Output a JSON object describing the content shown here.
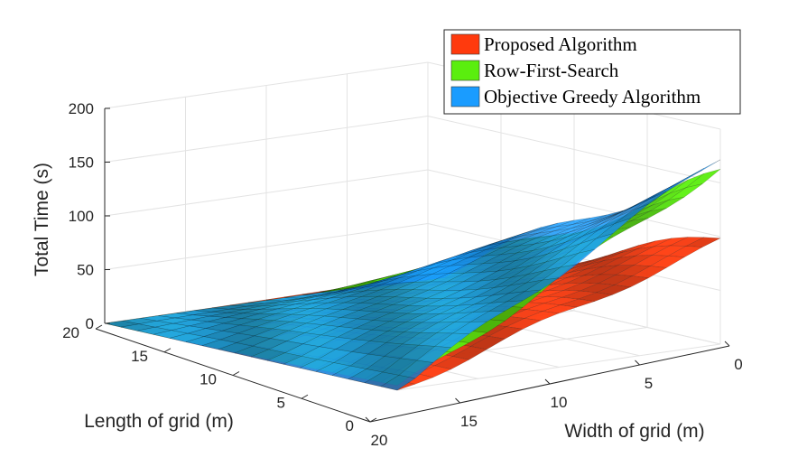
{
  "chart_data": {
    "type": "surface",
    "title": "",
    "xlabel": "Width of grid (m)",
    "ylabel": "Length of grid (m)",
    "zlabel": "Total Time (s)",
    "x_ticks": [
      "0",
      "5",
      "10",
      "15",
      "20"
    ],
    "y_ticks": [
      "0",
      "5",
      "10",
      "15",
      "20"
    ],
    "z_ticks": [
      "0",
      "50",
      "100",
      "150",
      "200"
    ],
    "xlim": [
      0,
      20
    ],
    "ylim": [
      0,
      20
    ],
    "zlim": [
      0,
      200
    ],
    "grid": true,
    "legend_position": "top-right",
    "surface_model": "z = peak * (1 - u) * (1 - v) + wave, u = width/20, v = length/20",
    "series": [
      {
        "name": "Proposed Algorithm",
        "color": "#ff3a0d",
        "peak": 95,
        "wave": 6
      },
      {
        "name": "Row-First-Search",
        "color": "#5aee0e",
        "peak": 158,
        "wave": 8
      },
      {
        "name": "Objective Greedy Algorithm",
        "color": "#1a9cff",
        "peak": 168,
        "wave": 7
      }
    ]
  }
}
